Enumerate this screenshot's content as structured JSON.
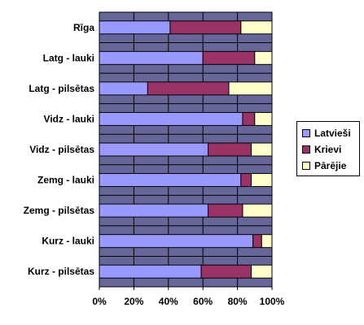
{
  "chart_data": {
    "type": "bar",
    "orientation": "horizontal",
    "stacked": "percent",
    "categories": [
      "Rīga",
      "Latg - lauki",
      "Latg - pilsētas",
      "Vidz - lauki",
      "Vidz - pilsētas",
      "Zemg - lauki",
      "Zemg - pilsētas",
      "Kurz - lauki",
      "Kurz - pilsētas"
    ],
    "series": [
      {
        "name": "Latvieši",
        "color": "#9999ff",
        "values": [
          41,
          60,
          28,
          83,
          63,
          82,
          63,
          89,
          59
        ]
      },
      {
        "name": "Krievi",
        "color": "#993366",
        "values": [
          41,
          30,
          47,
          7,
          25,
          6,
          20,
          5,
          29
        ]
      },
      {
        "name": "Pārējie",
        "color": "#ffffcc",
        "values": [
          18,
          10,
          25,
          10,
          12,
          12,
          17,
          6,
          12
        ]
      }
    ],
    "xlim": [
      0,
      100
    ],
    "x_ticks": [
      "0%",
      "20%",
      "40%",
      "60%",
      "80%",
      "100%"
    ],
    "plot_background": "#666699",
    "grid": true,
    "legend_position": "right"
  }
}
